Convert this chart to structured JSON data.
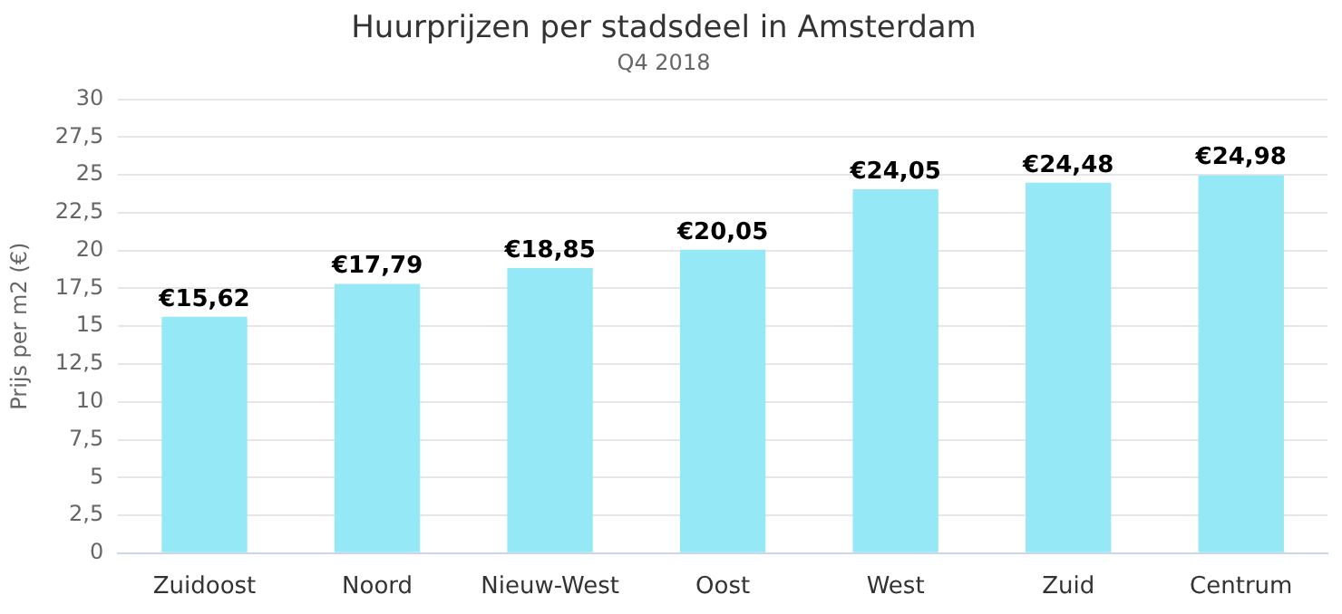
{
  "chart_data": {
    "type": "bar",
    "title": "Huurprijzen per stadsdeel in Amsterdam",
    "subtitle": "Q4 2018",
    "ylabel": "Prijs per m2 (€)",
    "categories": [
      "Zuidoost",
      "Noord",
      "Nieuw-West",
      "Oost",
      "West",
      "Zuid",
      "Centrum"
    ],
    "values": [
      15.62,
      17.79,
      18.85,
      20.05,
      24.05,
      24.48,
      24.98
    ],
    "value_labels": [
      "€15,62",
      "€17,79",
      "€18,85",
      "€20,05",
      "€24,05",
      "€24,48",
      "€24,98"
    ],
    "color": "#95e8f5",
    "ylim": [
      0,
      30
    ],
    "yticks": [
      0,
      {
        "value": 2.5,
        "label": "2,5"
      },
      5,
      {
        "value": 7.5,
        "label": "7,5"
      },
      10,
      {
        "value": 12.5,
        "label": "12,5"
      },
      15,
      {
        "value": 17.5,
        "label": "17,5"
      },
      20,
      {
        "value": 22.5,
        "label": "22,5"
      },
      25,
      {
        "value": 27.5,
        "label": "27,5"
      },
      30
    ],
    "grid": "y",
    "legend": false
  }
}
